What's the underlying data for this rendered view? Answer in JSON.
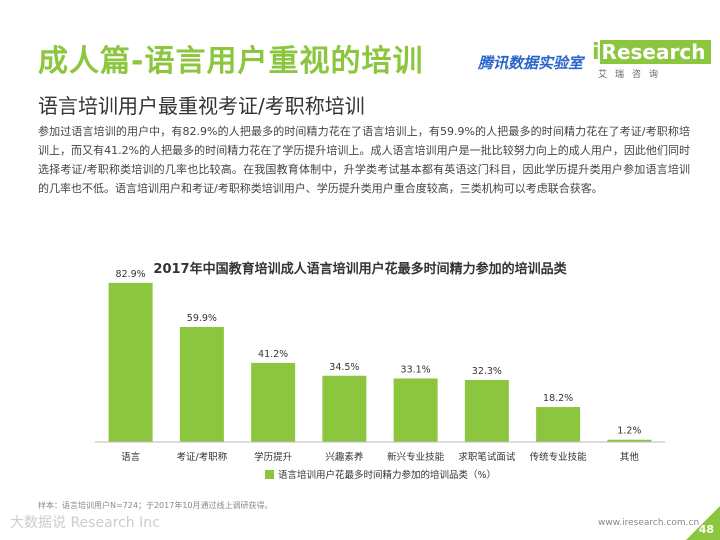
{
  "header": {
    "title": "成人篇-语言用户重视的培训",
    "subtitle": "语言培训用户最重视考证/考职称培训",
    "brand_tencent": "腾讯数据实验室",
    "logo_i": "i",
    "logo_word": "Research",
    "logo_sub": "艾瑞咨询"
  },
  "paragraph": "参加过语言培训的用户中，有82.9%的人把最多的时间精力花在了语言培训上，有59.9%的人把最多的时间精力花在了考证/考职称培训上，而又有41.2%的人把最多的时间精力花在了学历提升培训上。成人语言培训用户是一批比较努力向上的成人用户，因此他们同时选择考证/考职称类培训的几率也比较高。在我国教育体制中，升学类考试基本都有英语这门科目，因此学历提升类用户参加语言培训的几率也不低。语言培训用户和考证/考职称类培训用户、学历提升类用户重合度较高，三类机构可以考虑联合获客。",
  "chart_data": {
    "type": "bar",
    "title": "2017年中国教育培训成人语言培训用户花最多时间精力参加的培训品类",
    "categories": [
      "语言",
      "考证/考职称",
      "学历提升",
      "兴趣素养",
      "新兴专业技能",
      "求职笔试面试",
      "传统专业技能",
      "其他"
    ],
    "values": [
      82.9,
      59.9,
      41.2,
      34.5,
      33.1,
      32.3,
      18.2,
      1.2
    ],
    "value_labels": [
      "82.9%",
      "59.9%",
      "41.2%",
      "34.5%",
      "33.1%",
      "32.3%",
      "18.2%",
      "1.2%"
    ],
    "legend": "语言培训用户花最多时间精力参加的培训品类（%）",
    "legend_position": "bottom",
    "ylim": [
      0,
      100
    ],
    "color": "#8cc63f"
  },
  "note": "样本：语言培训用户N=724；于2017年10月通过线上调研获得。",
  "footer": {
    "left": "大数据说 Research Inc",
    "right": "www.iresearch.com.cn",
    "page": "48"
  }
}
